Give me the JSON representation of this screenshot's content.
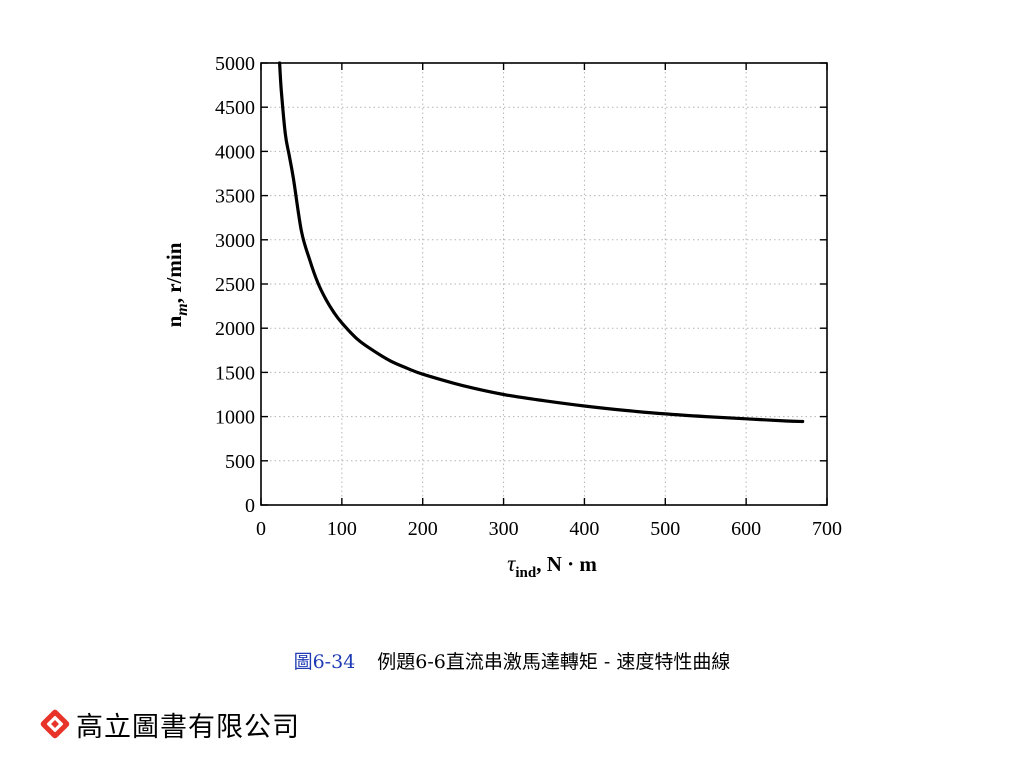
{
  "chart_data": {
    "type": "line",
    "xlabel_main": "τ",
    "xlabel_sub": "ind",
    "xlabel_rest": ", N · m",
    "ylabel_main": "n",
    "ylabel_sub": "m",
    "ylabel_rest": ", r/min",
    "xlim": [
      0,
      700
    ],
    "ylim": [
      0,
      5000
    ],
    "x_ticks": [
      0,
      100,
      200,
      300,
      400,
      500,
      600,
      700
    ],
    "y_ticks": [
      0,
      500,
      1000,
      1500,
      2000,
      2500,
      3000,
      3500,
      4000,
      4500,
      5000
    ],
    "grid": true,
    "series": [
      {
        "x": [
          23,
          25,
          30,
          35,
          40,
          50,
          60,
          70,
          80,
          90,
          100,
          120,
          140,
          160,
          180,
          200,
          250,
          300,
          350,
          400,
          450,
          500,
          550,
          600,
          650,
          670
        ],
        "y": [
          5000,
          4700,
          4200,
          3950,
          3700,
          3100,
          2780,
          2520,
          2330,
          2180,
          2060,
          1870,
          1740,
          1630,
          1550,
          1480,
          1350,
          1250,
          1180,
          1120,
          1070,
          1030,
          1000,
          975,
          950,
          945
        ]
      }
    ]
  },
  "caption": {
    "figure_number": "圖6-34",
    "text": "例題6-6直流串激馬達轉矩 - 速度特性曲線"
  },
  "publisher": {
    "name": "高立圖書有限公司",
    "logo_icon": "diamond-logo-icon",
    "logo_color": "#e8332a"
  }
}
